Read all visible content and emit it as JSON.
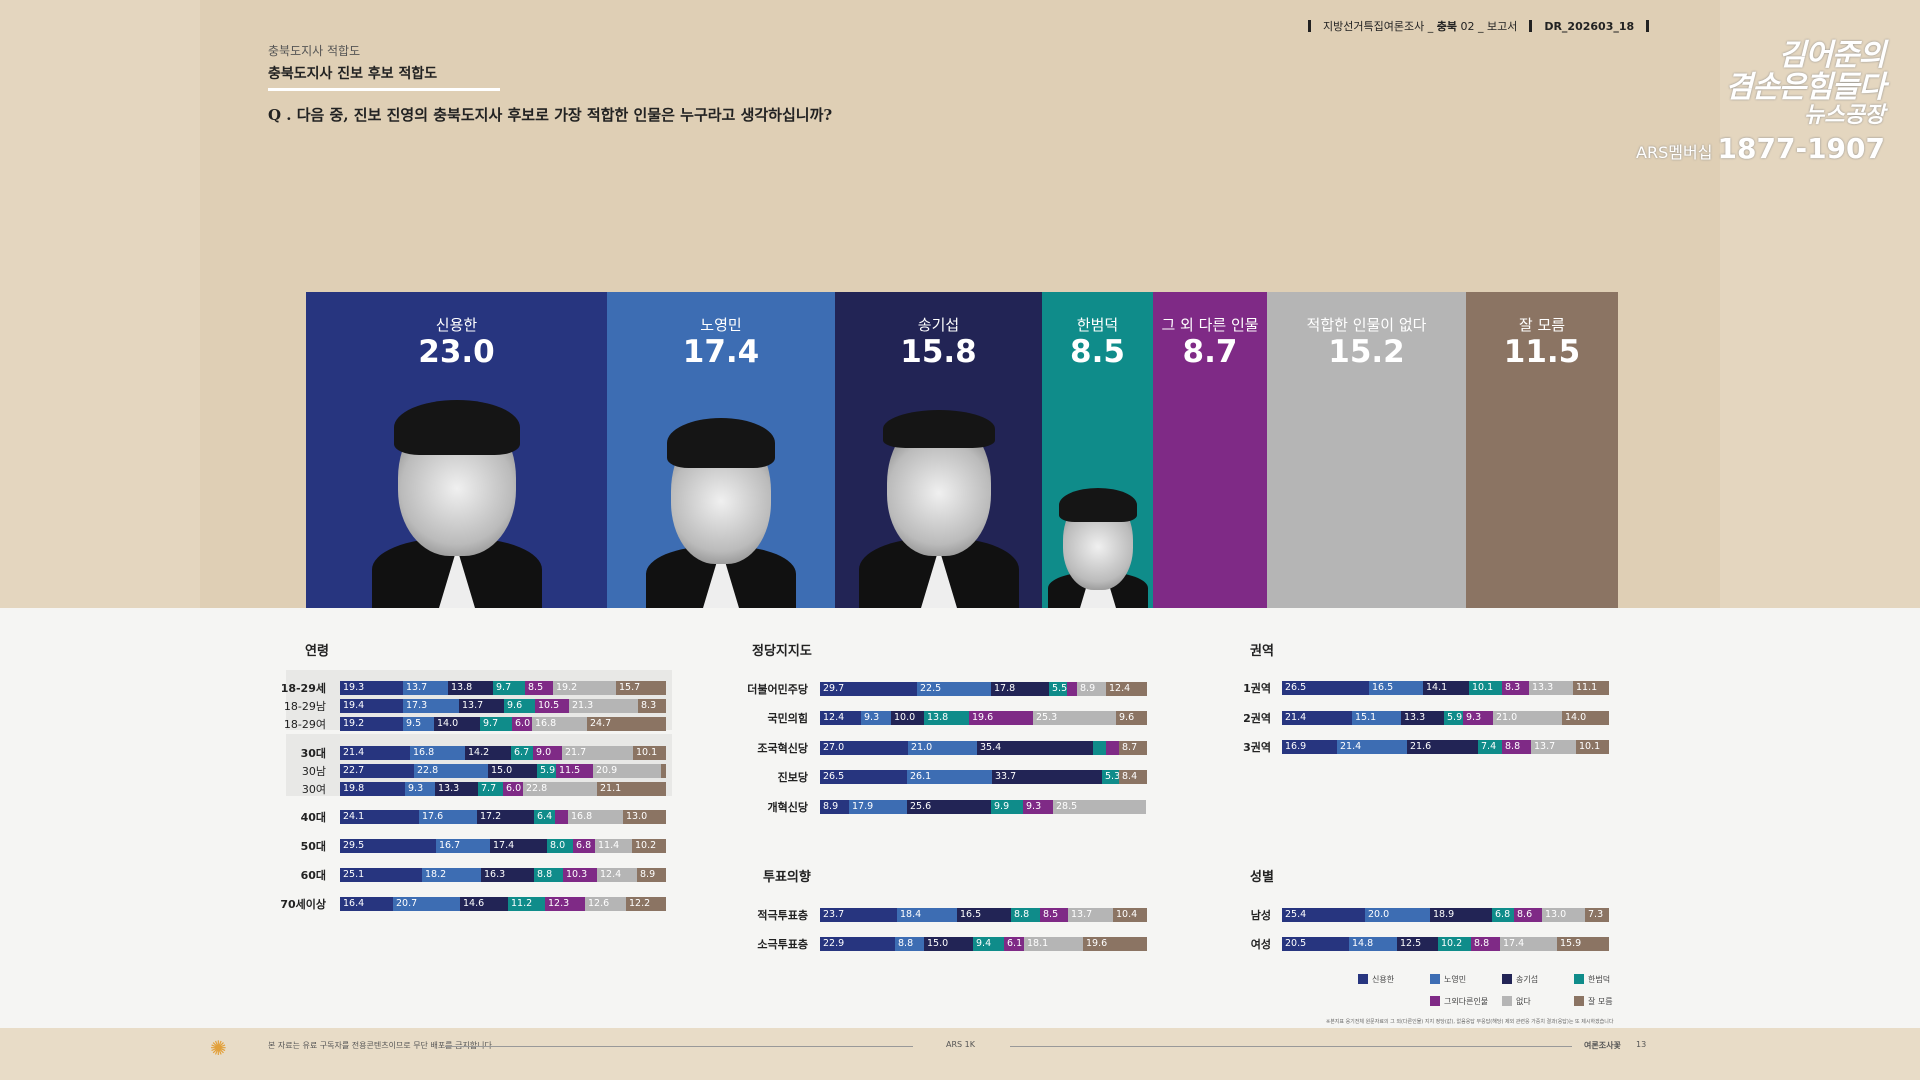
{
  "header": {
    "survey_label": "지방선거특집여론조사",
    "region": "충북",
    "report_no": "02",
    "report_label": "보고서",
    "doc_id": "DR_202603_18"
  },
  "kicker": "충북도지사 적합도",
  "title": "충북도지사 진보 후보 적합도",
  "question": "Q . 다음 중, 진보 진영의 충북도지사 후보로 가장 적합한 인물은 누구라고 생각하십니까?",
  "logo": {
    "line1": "김어준의",
    "line2": "겸손은힘들다",
    "line3": "뉴스공장",
    "ars_label": "ARS멤버십",
    "ars_number": "1877-1907"
  },
  "sections": {
    "age": "연령",
    "party": "정당지지도",
    "region": "권역",
    "vote": "투표의향",
    "gender": "성별"
  },
  "colors": [
    "#27357f",
    "#3d6db3",
    "#222455",
    "#0f8c8a",
    "#7f2a86",
    "#b5b5b5",
    "#8b7463"
  ],
  "legend": [
    "신용한",
    "노영민",
    "송기섭",
    "한범덕",
    "그외다른인물",
    "없다",
    "잘 모름"
  ],
  "footer": {
    "left": "본 자료는 유료 구독자를 전용콘텐츠이므로 무단 배포를 금지합니다",
    "center": "ARS 1K",
    "right": "여론조사꽃",
    "page": "13"
  },
  "footnote": "※본지표 응기전체 원문자료의 그 외(다른인물) 지지 정당(값), 없음응답 무응답(해당) 제외 관련응 가중치 결과(응답)는 또 제시하겠습니다",
  "chart_data": [
    {
      "type": "bar",
      "title": "충북도지사 진보 후보 적합도",
      "categories": [
        "신용한",
        "노영민",
        "송기섭",
        "한범덕",
        "그 외 다른 인물",
        "적합한 인물이 없다",
        "잘 모름"
      ],
      "values": [
        23.0,
        17.4,
        15.8,
        8.5,
        8.7,
        15.2,
        11.5
      ],
      "value_labels": [
        "23.0",
        "17.4",
        "15.8",
        "8.5",
        "8.7",
        "15.2",
        "11.5"
      ]
    },
    {
      "type": "bar",
      "stacked": true,
      "section": "연령",
      "series_names": [
        "신용한",
        "노영민",
        "송기섭",
        "한범덕",
        "그외다른인물",
        "없다",
        "잘 모름"
      ],
      "rows": [
        {
          "label": "18-29세",
          "values": [
            19.3,
            13.7,
            13.8,
            9.7,
            8.5,
            19.2,
            15.7
          ]
        },
        {
          "label": "18-29남",
          "values": [
            19.4,
            17.3,
            13.7,
            9.6,
            10.5,
            21.3,
            8.3
          ]
        },
        {
          "label": "18-29여",
          "values": [
            19.2,
            9.5,
            14.0,
            9.7,
            6.0,
            16.8,
            24.7
          ]
        },
        {
          "label": "30대",
          "values": [
            21.4,
            16.8,
            14.2,
            6.7,
            9.0,
            21.7,
            10.1
          ]
        },
        {
          "label": "30남",
          "values": [
            22.7,
            22.8,
            15.0,
            5.9,
            11.5,
            20.9,
            1.2
          ]
        },
        {
          "label": "30여",
          "values": [
            19.8,
            9.3,
            13.3,
            7.7,
            6.0,
            22.8,
            21.1
          ]
        },
        {
          "label": "40대",
          "values": [
            24.1,
            17.6,
            17.2,
            6.4,
            4.0,
            16.8,
            13.0
          ]
        },
        {
          "label": "50대",
          "values": [
            29.5,
            16.7,
            17.4,
            8.0,
            6.8,
            11.4,
            10.2
          ]
        },
        {
          "label": "60대",
          "values": [
            25.1,
            18.2,
            16.3,
            8.8,
            10.3,
            12.4,
            8.9
          ]
        },
        {
          "label": "70세이상",
          "values": [
            16.4,
            20.7,
            14.6,
            11.2,
            12.3,
            12.6,
            12.2
          ]
        }
      ]
    },
    {
      "type": "bar",
      "stacked": true,
      "section": "정당지지도",
      "series_names": [
        "신용한",
        "노영민",
        "송기섭",
        "한범덕",
        "그외다른인물",
        "없다",
        "잘 모름"
      ],
      "rows": [
        {
          "label": "더불어민주당",
          "values": [
            29.7,
            22.5,
            17.8,
            5.5,
            3.1,
            8.9,
            12.4
          ]
        },
        {
          "label": "국민의힘",
          "values": [
            12.4,
            9.3,
            10.0,
            13.8,
            19.6,
            25.3,
            9.6
          ]
        },
        {
          "label": "조국혁신당",
          "values": [
            27.0,
            21.0,
            35.4,
            4.0,
            3.9,
            0,
            8.7
          ]
        },
        {
          "label": "진보당",
          "values": [
            26.5,
            26.1,
            33.7,
            5.3,
            0,
            0,
            8.4
          ]
        },
        {
          "label": "개혁신당",
          "values": [
            8.9,
            17.9,
            25.6,
            9.9,
            9.3,
            28.5,
            0
          ]
        }
      ]
    },
    {
      "type": "bar",
      "stacked": true,
      "section": "권역",
      "series_names": [
        "신용한",
        "노영민",
        "송기섭",
        "한범덕",
        "그외다른인물",
        "없다",
        "잘 모름"
      ],
      "rows": [
        {
          "label": "1권역",
          "values": [
            26.5,
            16.5,
            14.1,
            10.1,
            8.3,
            13.3,
            11.1
          ]
        },
        {
          "label": "2권역",
          "values": [
            21.4,
            15.1,
            13.3,
            5.9,
            9.3,
            21.0,
            14.0
          ]
        },
        {
          "label": "3권역",
          "values": [
            16.9,
            21.4,
            21.6,
            7.4,
            8.8,
            13.7,
            10.1
          ]
        }
      ]
    },
    {
      "type": "bar",
      "stacked": true,
      "section": "투표의향",
      "series_names": [
        "신용한",
        "노영민",
        "송기섭",
        "한범덕",
        "그외다른인물",
        "없다",
        "잘 모름"
      ],
      "rows": [
        {
          "label": "적극투표층",
          "values": [
            23.7,
            18.4,
            16.5,
            8.8,
            8.5,
            13.7,
            10.4
          ]
        },
        {
          "label": "소극투표층",
          "values": [
            22.9,
            8.8,
            15.0,
            9.4,
            6.1,
            18.1,
            19.6
          ]
        }
      ]
    },
    {
      "type": "bar",
      "stacked": true,
      "section": "성별",
      "series_names": [
        "신용한",
        "노영민",
        "송기섭",
        "한범덕",
        "그외다른인물",
        "없다",
        "잘 모름"
      ],
      "rows": [
        {
          "label": "남성",
          "values": [
            25.4,
            20.0,
            18.9,
            6.8,
            8.6,
            13.0,
            7.3
          ]
        },
        {
          "label": "여성",
          "values": [
            20.5,
            14.8,
            12.5,
            10.2,
            8.8,
            17.4,
            15.9
          ]
        }
      ]
    }
  ]
}
